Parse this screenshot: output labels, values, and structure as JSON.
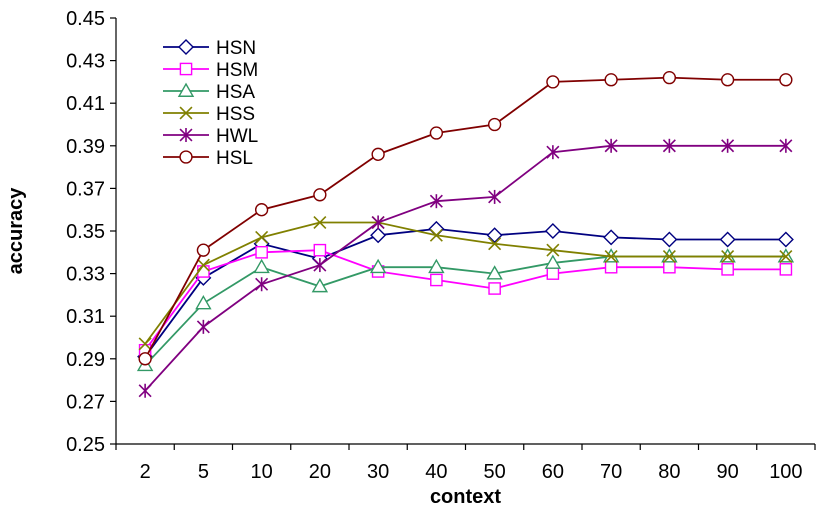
{
  "chart_data": {
    "type": "line",
    "title": "",
    "xlabel": "context",
    "ylabel": "accuracy",
    "categories": [
      "2",
      "5",
      "10",
      "20",
      "30",
      "40",
      "50",
      "60",
      "70",
      "80",
      "90",
      "100"
    ],
    "ylim": [
      0.25,
      0.45
    ],
    "yticks": [
      "0.25",
      "0.27",
      "0.29",
      "0.31",
      "0.33",
      "0.35",
      "0.37",
      "0.39",
      "0.41",
      "0.43",
      "0.45"
    ],
    "grid": false,
    "legend_position": "top-left",
    "series": [
      {
        "name": "HSN",
        "color": "#000080",
        "marker": "diamond",
        "values": [
          0.291,
          0.328,
          0.344,
          0.337,
          0.348,
          0.351,
          0.348,
          0.35,
          0.347,
          0.346,
          0.346,
          0.346
        ]
      },
      {
        "name": "HSM",
        "color": "#FF00FF",
        "marker": "square",
        "values": [
          0.294,
          0.331,
          0.34,
          0.341,
          0.331,
          0.327,
          0.323,
          0.33,
          0.333,
          0.333,
          0.332,
          0.332
        ]
      },
      {
        "name": "HSA",
        "color": "#339966",
        "marker": "triangle",
        "values": [
          0.287,
          0.316,
          0.333,
          0.324,
          0.333,
          0.333,
          0.33,
          0.335,
          0.338,
          0.338,
          0.338,
          0.338
        ]
      },
      {
        "name": "HSS",
        "color": "#808000",
        "marker": "x",
        "values": [
          0.297,
          0.334,
          0.347,
          0.354,
          0.354,
          0.348,
          0.344,
          0.341,
          0.338,
          0.338,
          0.338,
          0.338
        ]
      },
      {
        "name": "HWL",
        "color": "#800080",
        "marker": "star",
        "values": [
          0.275,
          0.305,
          0.325,
          0.334,
          0.354,
          0.364,
          0.366,
          0.387,
          0.39,
          0.39,
          0.39,
          0.39
        ]
      },
      {
        "name": "HSL",
        "color": "#800000",
        "marker": "circle",
        "values": [
          0.29,
          0.341,
          0.36,
          0.367,
          0.386,
          0.396,
          0.4,
          0.42,
          0.421,
          0.422,
          0.421,
          0.421
        ]
      }
    ]
  }
}
